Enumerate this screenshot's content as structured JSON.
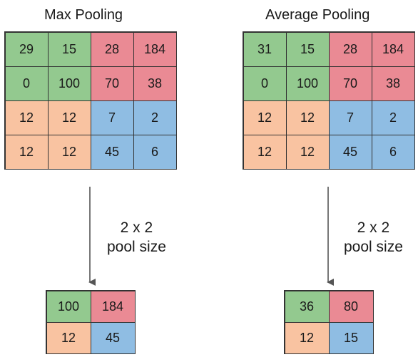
{
  "max_pooling": {
    "title": "Max Pooling",
    "input": [
      [
        "29",
        "15",
        "28",
        "184"
      ],
      [
        "0",
        "100",
        "70",
        "38"
      ],
      [
        "12",
        "12",
        "7",
        "2"
      ],
      [
        "12",
        "12",
        "45",
        "6"
      ]
    ],
    "output": [
      [
        "100",
        "184"
      ],
      [
        "12",
        "45"
      ]
    ],
    "pool_label_line1": "2 x 2",
    "pool_label_line2": "pool size"
  },
  "average_pooling": {
    "title": "Average Pooling",
    "input": [
      [
        "31",
        "15",
        "28",
        "184"
      ],
      [
        "0",
        "100",
        "70",
        "38"
      ],
      [
        "12",
        "12",
        "7",
        "2"
      ],
      [
        "12",
        "12",
        "45",
        "6"
      ]
    ],
    "output": [
      [
        "36",
        "80"
      ],
      [
        "12",
        "15"
      ]
    ],
    "pool_label_line1": "2 x 2",
    "pool_label_line2": "pool size"
  },
  "colors": {
    "green": "#93c98f",
    "red": "#ea8a94",
    "orange": "#f9c3a1",
    "blue": "#8fbde3"
  }
}
